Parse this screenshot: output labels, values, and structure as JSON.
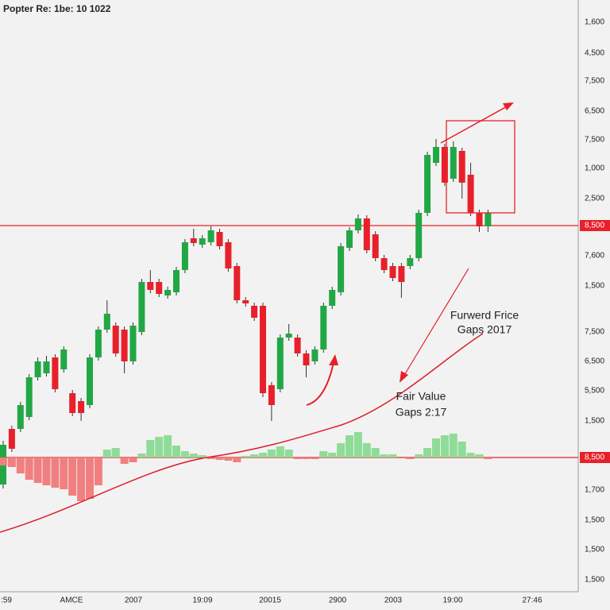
{
  "chart_data": [
    {
      "type": "candlestick",
      "title": "Popter Re: 1be: 10 1022",
      "up_color": "#22a745",
      "down_color": "#e8202a",
      "ylim": [
        0,
        768
      ],
      "open": [
        158,
        228,
        228,
        243,
        293,
        298,
        318,
        303,
        273,
        263,
        258,
        318,
        353,
        358,
        353,
        313,
        350,
        413,
        413,
        396,
        400,
        428,
        468,
        460,
        463,
        476,
        463,
        433,
        390,
        383,
        383,
        283,
        278,
        343,
        343,
        323,
        313,
        328,
        383,
        400,
        456,
        478,
        493,
        473,
        443,
        433,
        433,
        433,
        443,
        500,
        563,
        583,
        543,
        578,
        548,
        500,
        483
      ],
      "high": [
        213,
        232,
        262,
        297,
        318,
        320,
        322,
        332,
        277,
        267,
        322,
        357,
        390,
        362,
        357,
        362,
        417,
        428,
        417,
        407,
        432,
        467,
        480,
        472,
        483,
        480,
        467,
        437,
        394,
        387,
        387,
        287,
        347,
        360,
        347,
        327,
        332,
        387,
        407,
        462,
        482,
        498,
        497,
        477,
        447,
        437,
        437,
        447,
        504,
        577,
        593,
        587,
        590,
        582,
        563,
        504,
        504
      ],
      "low": [
        153,
        199,
        224,
        239,
        289,
        294,
        274,
        299,
        244,
        238,
        254,
        314,
        349,
        319,
        298,
        309,
        346,
        399,
        394,
        392,
        396,
        424,
        458,
        456,
        459,
        454,
        426,
        386,
        382,
        364,
        268,
        238,
        274,
        339,
        319,
        293,
        309,
        324,
        379,
        396,
        452,
        474,
        449,
        439,
        424,
        414,
        393,
        429,
        439,
        496,
        559,
        534,
        539,
        518,
        496,
        476,
        476
      ],
      "close": [
        208,
        203,
        258,
        293,
        313,
        313,
        278,
        328,
        248,
        248,
        318,
        353,
        373,
        323,
        313,
        358,
        413,
        403,
        398,
        403,
        428,
        463,
        462,
        468,
        478,
        458,
        430,
        390,
        386,
        368,
        273,
        258,
        343,
        348,
        323,
        308,
        328,
        383,
        403,
        458,
        478,
        493,
        453,
        443,
        428,
        418,
        413,
        443,
        500,
        573,
        583,
        538,
        583,
        538,
        500,
        483,
        500
      ],
      "levels": [
        484,
        192
      ],
      "y_axis_labels": [
        "1,600",
        "4,500",
        "7,500",
        "6,500",
        "7,500",
        "1,000",
        "2,500",
        "8,500",
        "7,600",
        "1,500",
        "7,500",
        "6,500",
        "5,500",
        "1,500",
        "8,500",
        "1,700",
        "1,500",
        "1,500",
        "1,500"
      ],
      "x_axis_labels": [
        ":59",
        "AMCE",
        "2007",
        "19:09",
        "20015",
        "2900",
        "2003",
        "19:00",
        "27:46"
      ],
      "annotations": [
        "Furwerd Frice",
        "Gaps 2017",
        "Fair Value",
        "Gaps 2:17"
      ]
    },
    {
      "type": "bar",
      "ylim": [
        -192,
        576
      ],
      "up_color": "#8fdc98",
      "down_color": "#f08080",
      "values": [
        -10,
        -12,
        -20,
        -28,
        -32,
        -35,
        -38,
        -40,
        -48,
        -55,
        -52,
        -35,
        10,
        12,
        -8,
        -6,
        5,
        22,
        26,
        28,
        15,
        8,
        5,
        3,
        -2,
        -3,
        -4,
        -6,
        2,
        4,
        6,
        10,
        14,
        10,
        -2,
        -2,
        -2,
        8,
        6,
        18,
        28,
        32,
        18,
        12,
        4,
        4,
        0,
        -2,
        4,
        12,
        24,
        28,
        30,
        20,
        6,
        4,
        -2
      ]
    }
  ]
}
